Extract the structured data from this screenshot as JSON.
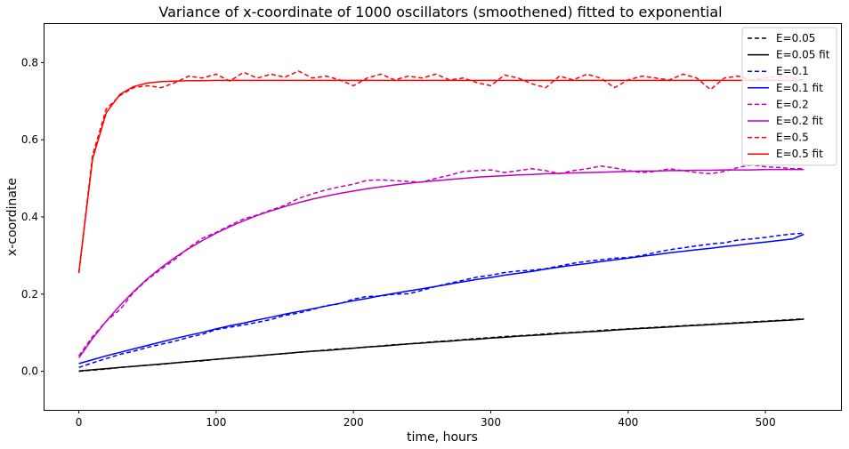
{
  "chart_data": {
    "type": "line",
    "title": "Variance of x-coordinate of 1000 oscillators (smoothened) fitted to exponential",
    "xlabel": "time, hours",
    "ylabel": "x-coordinate",
    "xlim": [
      -25,
      555
    ],
    "ylim": [
      -0.1,
      0.9
    ],
    "xticks": [
      0,
      100,
      200,
      300,
      400,
      500
    ],
    "yticks": [
      0.0,
      0.2,
      0.4,
      0.6,
      0.8
    ],
    "xtick_labels": [
      "0",
      "100",
      "200",
      "300",
      "400",
      "500"
    ],
    "ytick_labels": [
      "0.0",
      "0.2",
      "0.4",
      "0.6",
      "0.8"
    ],
    "grid": false,
    "legend_position": "top-right",
    "x": [
      0,
      10,
      20,
      30,
      40,
      50,
      60,
      70,
      80,
      90,
      100,
      110,
      120,
      130,
      140,
      150,
      160,
      170,
      180,
      190,
      200,
      210,
      220,
      230,
      240,
      250,
      260,
      270,
      280,
      290,
      300,
      310,
      320,
      330,
      340,
      350,
      360,
      370,
      380,
      390,
      400,
      410,
      420,
      430,
      440,
      450,
      460,
      470,
      480,
      490,
      500,
      510,
      520,
      528
    ],
    "series": [
      {
        "name": "E=0.05",
        "color": "#000000",
        "style": "dashed",
        "values": [
          0.0,
          0.003,
          0.006,
          0.01,
          0.013,
          0.016,
          0.018,
          0.022,
          0.025,
          0.027,
          0.031,
          0.034,
          0.037,
          0.04,
          0.043,
          0.046,
          0.049,
          0.052,
          0.055,
          0.058,
          0.06,
          0.063,
          0.066,
          0.069,
          0.071,
          0.074,
          0.077,
          0.079,
          0.082,
          0.085,
          0.087,
          0.09,
          0.092,
          0.094,
          0.097,
          0.099,
          0.101,
          0.103,
          0.106,
          0.108,
          0.11,
          0.112,
          0.114,
          0.116,
          0.118,
          0.12,
          0.122,
          0.124,
          0.126,
          0.128,
          0.13,
          0.132,
          0.134,
          0.136
        ]
      },
      {
        "name": "E=0.05 fit",
        "color": "#000000",
        "style": "solid",
        "values": [
          0.001,
          0.004,
          0.007,
          0.01,
          0.013,
          0.016,
          0.019,
          0.022,
          0.025,
          0.028,
          0.031,
          0.034,
          0.037,
          0.04,
          0.043,
          0.046,
          0.049,
          0.052,
          0.054,
          0.057,
          0.06,
          0.063,
          0.065,
          0.068,
          0.071,
          0.073,
          0.076,
          0.078,
          0.081,
          0.083,
          0.086,
          0.088,
          0.091,
          0.093,
          0.095,
          0.098,
          0.1,
          0.102,
          0.104,
          0.107,
          0.109,
          0.111,
          0.113,
          0.115,
          0.117,
          0.119,
          0.121,
          0.123,
          0.125,
          0.127,
          0.129,
          0.131,
          0.133,
          0.135
        ]
      },
      {
        "name": "E=0.1",
        "color": "#0000ff",
        "style": "dashed",
        "values": [
          0.01,
          0.022,
          0.033,
          0.044,
          0.052,
          0.062,
          0.07,
          0.078,
          0.088,
          0.096,
          0.108,
          0.114,
          0.12,
          0.127,
          0.134,
          0.145,
          0.151,
          0.16,
          0.17,
          0.175,
          0.187,
          0.194,
          0.195,
          0.2,
          0.201,
          0.21,
          0.22,
          0.228,
          0.236,
          0.244,
          0.249,
          0.256,
          0.26,
          0.262,
          0.266,
          0.273,
          0.28,
          0.285,
          0.289,
          0.293,
          0.295,
          0.3,
          0.308,
          0.315,
          0.32,
          0.325,
          0.33,
          0.333,
          0.34,
          0.343,
          0.347,
          0.352,
          0.356,
          0.358
        ]
      },
      {
        "name": "E=0.1 fit",
        "color": "#0000ff",
        "style": "solid",
        "values": [
          0.02,
          0.03,
          0.04,
          0.049,
          0.058,
          0.067,
          0.076,
          0.085,
          0.093,
          0.101,
          0.11,
          0.118,
          0.125,
          0.133,
          0.14,
          0.148,
          0.155,
          0.162,
          0.169,
          0.176,
          0.183,
          0.189,
          0.196,
          0.202,
          0.208,
          0.214,
          0.22,
          0.226,
          0.232,
          0.238,
          0.243,
          0.249,
          0.254,
          0.259,
          0.265,
          0.27,
          0.275,
          0.279,
          0.284,
          0.289,
          0.293,
          0.298,
          0.302,
          0.307,
          0.311,
          0.315,
          0.319,
          0.323,
          0.327,
          0.331,
          0.335,
          0.339,
          0.343,
          0.355
        ]
      },
      {
        "name": "E=0.2",
        "color": "#bf00bf",
        "style": "dashed",
        "values": [
          0.04,
          0.09,
          0.13,
          0.16,
          0.205,
          0.238,
          0.265,
          0.29,
          0.32,
          0.345,
          0.36,
          0.378,
          0.395,
          0.405,
          0.418,
          0.43,
          0.448,
          0.46,
          0.47,
          0.478,
          0.485,
          0.495,
          0.496,
          0.494,
          0.492,
          0.49,
          0.5,
          0.508,
          0.518,
          0.52,
          0.522,
          0.515,
          0.52,
          0.525,
          0.52,
          0.512,
          0.52,
          0.525,
          0.532,
          0.527,
          0.52,
          0.515,
          0.518,
          0.525,
          0.52,
          0.515,
          0.512,
          0.518,
          0.528,
          0.535,
          0.53,
          0.528,
          0.525,
          0.525
        ]
      },
      {
        "name": "E=0.2 fit",
        "color": "#bf00bf",
        "style": "solid",
        "values": [
          0.035,
          0.085,
          0.13,
          0.171,
          0.207,
          0.24,
          0.269,
          0.295,
          0.318,
          0.339,
          0.358,
          0.375,
          0.39,
          0.404,
          0.416,
          0.427,
          0.437,
          0.446,
          0.454,
          0.461,
          0.467,
          0.473,
          0.478,
          0.483,
          0.487,
          0.491,
          0.494,
          0.497,
          0.5,
          0.503,
          0.505,
          0.507,
          0.509,
          0.51,
          0.512,
          0.513,
          0.514,
          0.515,
          0.516,
          0.517,
          0.518,
          0.519,
          0.519,
          0.52,
          0.52,
          0.521,
          0.521,
          0.522,
          0.522,
          0.522,
          0.523,
          0.523,
          0.523,
          0.523
        ]
      },
      {
        "name": "E=0.5",
        "color": "#ff0000",
        "style": "dashed",
        "values": [
          0.255,
          0.56,
          0.68,
          0.715,
          0.735,
          0.74,
          0.735,
          0.748,
          0.765,
          0.76,
          0.77,
          0.752,
          0.775,
          0.76,
          0.77,
          0.762,
          0.778,
          0.76,
          0.765,
          0.755,
          0.74,
          0.76,
          0.77,
          0.755,
          0.765,
          0.76,
          0.77,
          0.755,
          0.76,
          0.748,
          0.74,
          0.768,
          0.76,
          0.745,
          0.735,
          0.765,
          0.755,
          0.77,
          0.76,
          0.735,
          0.755,
          0.765,
          0.76,
          0.755,
          0.77,
          0.76,
          0.73,
          0.76,
          0.765,
          0.755,
          0.76,
          0.765,
          0.76,
          0.755
        ]
      },
      {
        "name": "E=0.5 fit",
        "color": "#ff0000",
        "style": "solid",
        "values": [
          0.255,
          0.55,
          0.67,
          0.718,
          0.738,
          0.747,
          0.751,
          0.752,
          0.753,
          0.753,
          0.754,
          0.754,
          0.754,
          0.754,
          0.754,
          0.754,
          0.754,
          0.754,
          0.754,
          0.754,
          0.754,
          0.754,
          0.754,
          0.754,
          0.754,
          0.754,
          0.754,
          0.754,
          0.754,
          0.754,
          0.754,
          0.754,
          0.754,
          0.754,
          0.754,
          0.754,
          0.754,
          0.754,
          0.754,
          0.754,
          0.754,
          0.754,
          0.754,
          0.754,
          0.754,
          0.754,
          0.754,
          0.754,
          0.754,
          0.754,
          0.754,
          0.754,
          0.754,
          0.754
        ]
      }
    ]
  }
}
